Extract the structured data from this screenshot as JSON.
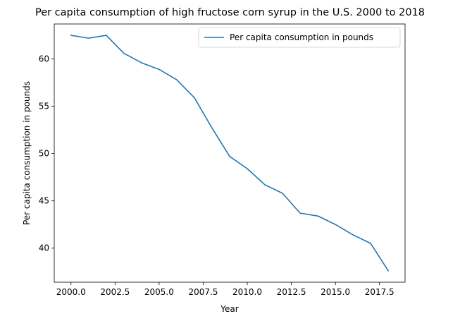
{
  "chart_data": {
    "type": "line",
    "title": "Per capita consumption of high fructose corn syrup in the U.S. 2000 to 2018",
    "xlabel": "Year",
    "ylabel": "Per capita consumption in pounds",
    "xlim": [
      1999.05,
      2018.95
    ],
    "ylim": [
      36.4,
      63.7
    ],
    "xticks": [
      2000.0,
      2002.5,
      2005.0,
      2007.5,
      2010.0,
      2012.5,
      2015.0,
      2017.5
    ],
    "xtick_labels": [
      "2000.0",
      "2002.5",
      "2005.0",
      "2007.5",
      "2010.0",
      "2012.5",
      "2015.0",
      "2017.5"
    ],
    "yticks": [
      40,
      45,
      50,
      55,
      60
    ],
    "ytick_labels": [
      "40",
      "45",
      "50",
      "55",
      "60"
    ],
    "grid": false,
    "legend_position": "top-right",
    "series": [
      {
        "name": "Per capita consumption in pounds",
        "color": "#1f77b4",
        "x": [
          2000,
          2001,
          2002,
          2003,
          2004,
          2005,
          2006,
          2007,
          2008,
          2009,
          2010,
          2011,
          2012,
          2013,
          2014,
          2015,
          2016,
          2017,
          2018
        ],
        "y": [
          62.5,
          62.2,
          62.5,
          60.6,
          59.6,
          58.9,
          57.8,
          55.9,
          52.7,
          49.7,
          48.4,
          46.7,
          45.8,
          43.7,
          43.4,
          42.5,
          41.4,
          40.5,
          37.6
        ]
      }
    ]
  }
}
